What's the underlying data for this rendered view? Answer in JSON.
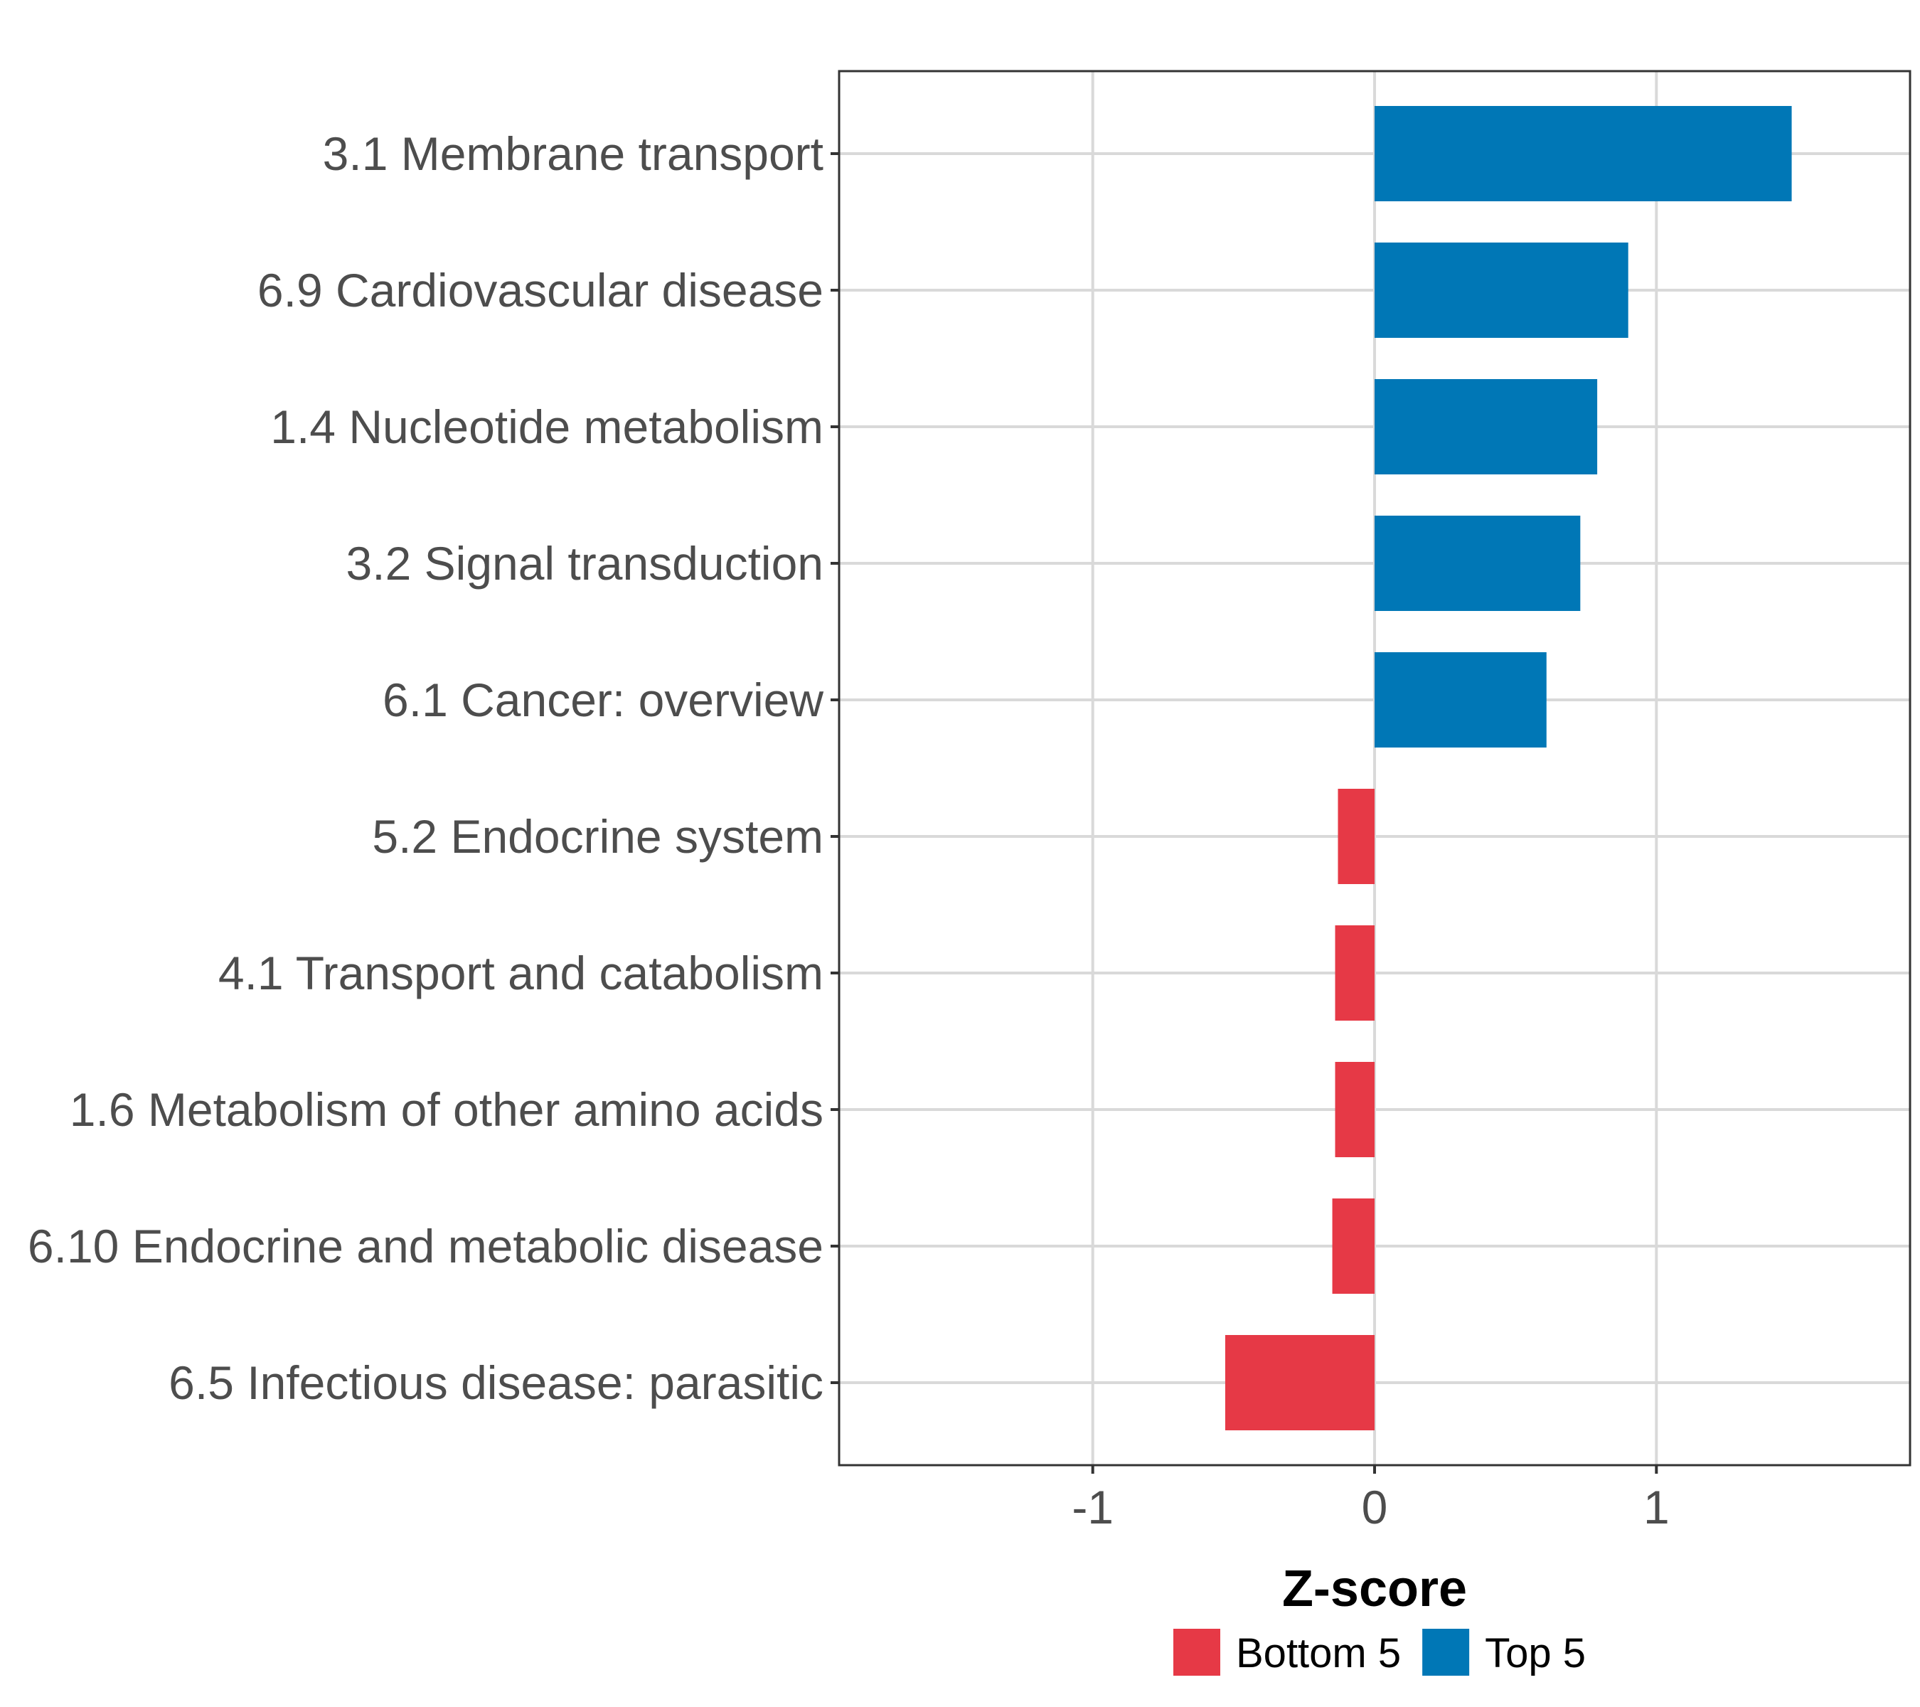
{
  "chart_data": {
    "type": "bar",
    "orientation": "horizontal",
    "title": "",
    "xlabel": "Z-score",
    "ylabel": "",
    "xlim": [
      -1.9,
      1.9
    ],
    "xticks": [
      -1,
      0,
      1
    ],
    "xtick_labels": [
      "-1",
      "0",
      "1"
    ],
    "grid": true,
    "legend_position": "bottom",
    "categories": [
      "3.1 Membrane transport",
      "6.9 Cardiovascular disease",
      "1.4 Nucleotide metabolism",
      "3.2 Signal transduction",
      "6.1 Cancer: overview",
      "5.2 Endocrine system",
      "4.1 Transport and catabolism",
      "1.6 Metabolism of other amino acids",
      "6.10 Endocrine and metabolic disease",
      "6.5 Infectious disease: parasitic"
    ],
    "values": [
      1.48,
      0.9,
      0.79,
      0.73,
      0.61,
      -0.13,
      -0.14,
      -0.14,
      -0.15,
      -0.53
    ],
    "groups": [
      "Top 5",
      "Top 5",
      "Top 5",
      "Top 5",
      "Top 5",
      "Bottom 5",
      "Bottom 5",
      "Bottom 5",
      "Bottom 5",
      "Bottom 5"
    ],
    "legend": [
      {
        "name": "Bottom 5",
        "color": "#E63946"
      },
      {
        "name": "Top 5",
        "color": "#0077B6"
      }
    ]
  }
}
